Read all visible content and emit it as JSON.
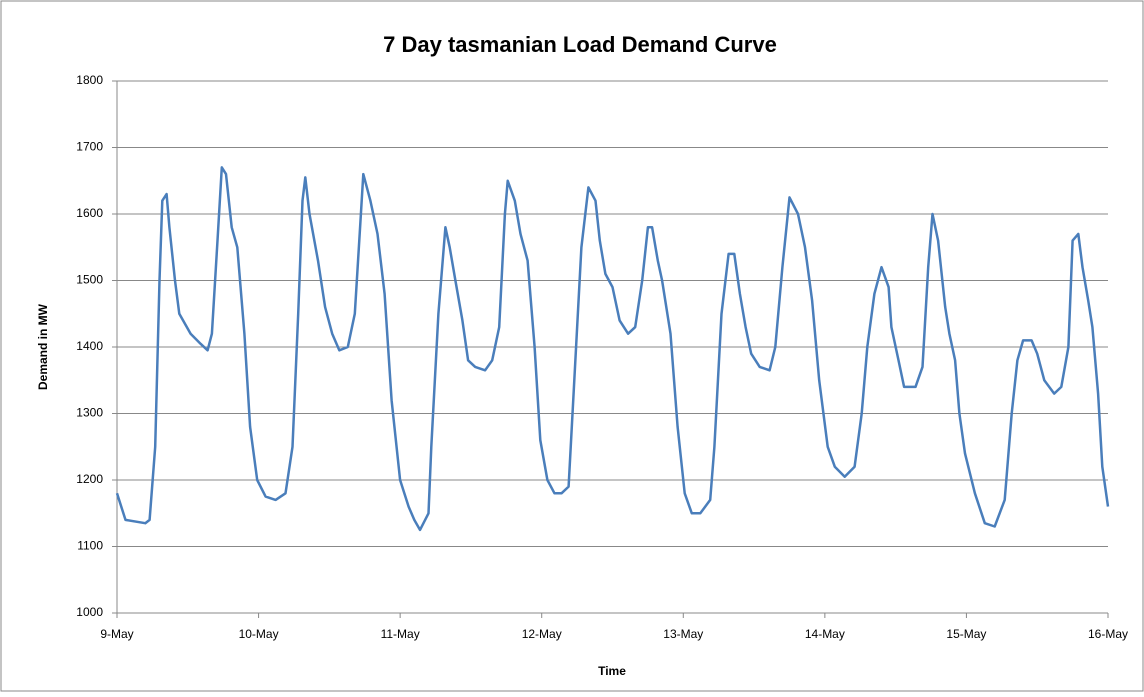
{
  "chart_data": {
    "type": "line",
    "title": "7 Day tasmanian Load Demand Curve",
    "x_label": "Time",
    "y_label": "Demand in MW",
    "color": "#4a7ebb",
    "grid": true,
    "xlim": [
      0,
      7
    ],
    "ylim": [
      1000,
      1800
    ],
    "xticks": [
      {
        "value": 0,
        "label": "9-May"
      },
      {
        "value": 1,
        "label": "10-May"
      },
      {
        "value": 2,
        "label": "11-May"
      },
      {
        "value": 3,
        "label": "12-May"
      },
      {
        "value": 4,
        "label": "13-May"
      },
      {
        "value": 5,
        "label": "14-May"
      },
      {
        "value": 6,
        "label": "15-May"
      },
      {
        "value": 7,
        "label": "16-May"
      }
    ],
    "yticks": [
      1000,
      1100,
      1200,
      1300,
      1400,
      1500,
      1600,
      1700,
      1800
    ],
    "x": [
      0,
      0.06,
      0.2,
      0.23,
      0.27,
      0.3,
      0.32,
      0.35,
      0.37,
      0.41,
      0.44,
      0.52,
      0.59,
      0.64,
      0.67,
      0.71,
      0.74,
      0.77,
      0.81,
      0.85,
      0.9,
      0.94,
      0.99,
      1.05,
      1.12,
      1.19,
      1.24,
      1.28,
      1.31,
      1.33,
      1.36,
      1.42,
      1.47,
      1.52,
      1.57,
      1.63,
      1.68,
      1.72,
      1.74,
      1.79,
      1.84,
      1.89,
      1.94,
      2.0,
      2.06,
      2.1,
      2.14,
      2.2,
      2.22,
      2.27,
      2.32,
      2.35,
      2.39,
      2.44,
      2.48,
      2.53,
      2.6,
      2.65,
      2.7,
      2.74,
      2.76,
      2.81,
      2.85,
      2.9,
      2.95,
      2.99,
      3.04,
      3.09,
      3.14,
      3.19,
      3.23,
      3.28,
      3.33,
      3.38,
      3.41,
      3.45,
      3.5,
      3.55,
      3.61,
      3.66,
      3.71,
      3.75,
      3.78,
      3.82,
      3.85,
      3.91,
      3.96,
      4.01,
      4.06,
      4.12,
      4.19,
      4.22,
      4.27,
      4.32,
      4.36,
      4.4,
      4.44,
      4.48,
      4.54,
      4.61,
      4.65,
      4.7,
      4.75,
      4.81,
      4.86,
      4.91,
      4.96,
      5.02,
      5.07,
      5.14,
      5.21,
      5.26,
      5.3,
      5.35,
      5.4,
      5.45,
      5.47,
      5.52,
      5.56,
      5.64,
      5.69,
      5.73,
      5.76,
      5.8,
      5.85,
      5.88,
      5.92,
      5.95,
      5.99,
      6.06,
      6.13,
      6.2,
      6.27,
      6.32,
      6.36,
      6.4,
      6.46,
      6.5,
      6.55,
      6.62,
      6.67,
      6.72,
      6.75,
      6.79,
      6.82,
      6.86,
      6.89,
      6.93,
      6.96,
      7.0
    ],
    "values": [
      1180,
      1140,
      1135,
      1140,
      1250,
      1500,
      1620,
      1630,
      1580,
      1500,
      1450,
      1420,
      1405,
      1395,
      1420,
      1560,
      1670,
      1660,
      1580,
      1550,
      1420,
      1280,
      1200,
      1175,
      1170,
      1180,
      1250,
      1450,
      1620,
      1655,
      1600,
      1530,
      1460,
      1420,
      1395,
      1400,
      1450,
      1590,
      1660,
      1620,
      1570,
      1480,
      1320,
      1200,
      1160,
      1140,
      1125,
      1150,
      1250,
      1450,
      1580,
      1550,
      1500,
      1440,
      1380,
      1370,
      1365,
      1380,
      1430,
      1600,
      1650,
      1620,
      1570,
      1530,
      1400,
      1260,
      1200,
      1180,
      1180,
      1190,
      1350,
      1550,
      1640,
      1620,
      1560,
      1510,
      1490,
      1440,
      1420,
      1430,
      1500,
      1580,
      1580,
      1530,
      1500,
      1420,
      1280,
      1180,
      1150,
      1150,
      1170,
      1250,
      1450,
      1540,
      1540,
      1480,
      1430,
      1390,
      1370,
      1365,
      1400,
      1520,
      1625,
      1600,
      1550,
      1470,
      1350,
      1250,
      1220,
      1205,
      1220,
      1300,
      1400,
      1480,
      1520,
      1490,
      1430,
      1380,
      1340,
      1340,
      1370,
      1520,
      1600,
      1560,
      1460,
      1420,
      1380,
      1300,
      1240,
      1180,
      1135,
      1130,
      1170,
      1300,
      1380,
      1410,
      1410,
      1390,
      1350,
      1330,
      1340,
      1400,
      1560,
      1570,
      1520,
      1470,
      1430,
      1330,
      1220,
      1160
    ]
  }
}
